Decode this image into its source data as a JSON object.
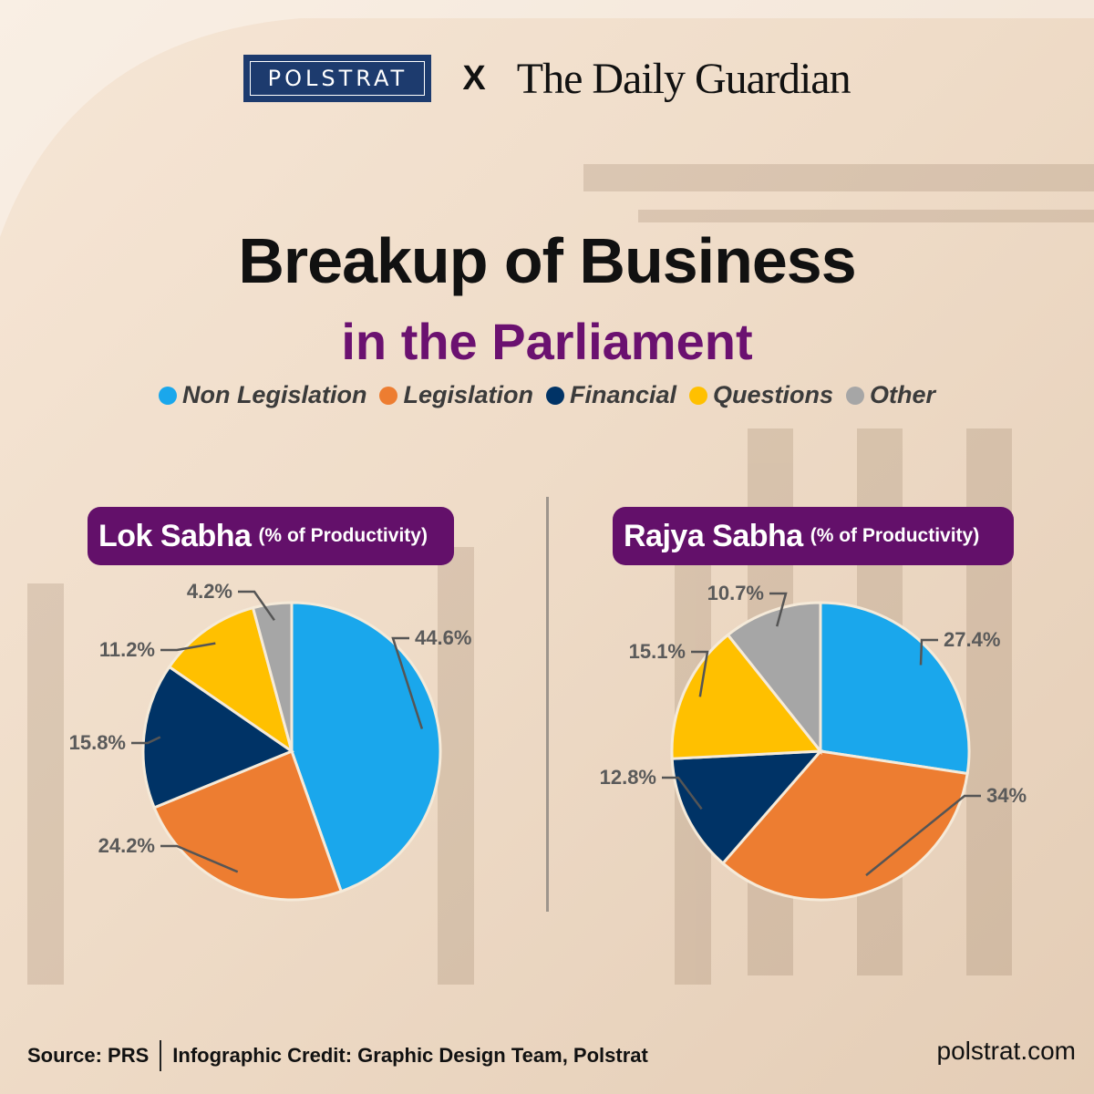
{
  "header": {
    "brand_left": "POLSTRAT",
    "cross": "X",
    "brand_right": "The Daily Guardian"
  },
  "title": "Breakup of Business",
  "subtitle": "in the Parliament",
  "legend": [
    {
      "label": "Non Legislation",
      "color": "#1aa7ec"
    },
    {
      "label": "Legislation",
      "color": "#ed7d31"
    },
    {
      "label": "Financial",
      "color": "#003366"
    },
    {
      "label": "Questions",
      "color": "#ffc000"
    },
    {
      "label": "Other",
      "color": "#a6a6a6"
    }
  ],
  "panels": {
    "lok": {
      "name": "Lok Sabha",
      "note": "(% of Productivity)"
    },
    "rajya": {
      "name": "Rajya Sabha",
      "note": "(% of Productivity)"
    }
  },
  "chart_data": [
    {
      "type": "pie",
      "title": "Lok Sabha (% of Productivity)",
      "categories": [
        "Non Legislation",
        "Legislation",
        "Financial",
        "Questions",
        "Other"
      ],
      "values": [
        44.6,
        24.2,
        15.8,
        11.2,
        4.2
      ],
      "labels": [
        "44.6%",
        "24.2%",
        "15.8%",
        "11.2%",
        "4.2%"
      ],
      "colors": [
        "#1aa7ec",
        "#ed7d31",
        "#003366",
        "#ffc000",
        "#a6a6a6"
      ]
    },
    {
      "type": "pie",
      "title": "Rajya Sabha (% of Productivity)",
      "categories": [
        "Non Legislation",
        "Legislation",
        "Financial",
        "Questions",
        "Other"
      ],
      "values": [
        27.4,
        34,
        12.8,
        15.1,
        10.7
      ],
      "labels": [
        "27.4%",
        "34%",
        "12.8%",
        "15.1%",
        "10.7%"
      ],
      "colors": [
        "#1aa7ec",
        "#ed7d31",
        "#003366",
        "#ffc000",
        "#a6a6a6"
      ]
    }
  ],
  "footer": {
    "source": "Source: PRS",
    "credit": "Infographic Credit: Graphic Design Team, Polstrat",
    "website": "polstrat.com"
  }
}
